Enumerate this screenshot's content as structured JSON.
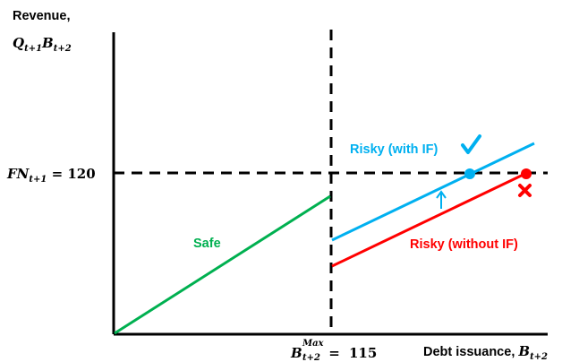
{
  "chart_data": {
    "type": "line",
    "y_axis_label": {
      "line1": "Revenue,",
      "line2_main": "Q",
      "line2_sub1": "t+1",
      "line2_mid": "B",
      "line2_sub2": "t+2"
    },
    "x_axis_label": {
      "text": "Debt issuance, ",
      "var": "B",
      "sub": "t+2"
    },
    "threshold_y": {
      "var": "FN",
      "sub": "t+1",
      "eq": " = ",
      "value": "120"
    },
    "threshold_x": {
      "var": "B",
      "sup": "Max",
      "sub": "t+2",
      "eq": " = ",
      "value": "115"
    },
    "series": [
      {
        "name": "Safe",
        "color": "#00b050"
      },
      {
        "name": "Risky (with IF)",
        "color": "#00b0f0"
      },
      {
        "name": "Risky (without IF)",
        "color": "#ff0000"
      }
    ],
    "markers": {
      "check": "✓",
      "cross": "✖",
      "arrow": "↑"
    },
    "axis_color": "#000000"
  }
}
